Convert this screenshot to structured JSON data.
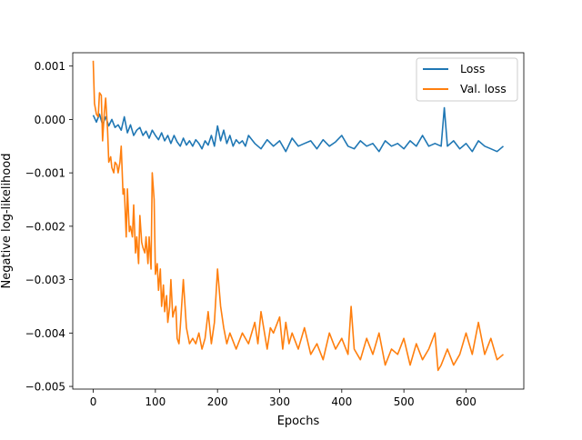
{
  "chart_data": {
    "type": "line",
    "title": "",
    "xlabel": "Epochs",
    "ylabel": "Negative log-likelihood",
    "xlim": [
      -33,
      693
    ],
    "ylim": [
      -0.00505,
      0.00125
    ],
    "xticks": [
      0,
      100,
      200,
      300,
      400,
      500,
      600
    ],
    "xtick_labels": [
      "0",
      "100",
      "200",
      "300",
      "400",
      "500",
      "600"
    ],
    "yticks": [
      0.001,
      0.0,
      -0.001,
      -0.002,
      -0.003,
      -0.004,
      -0.005
    ],
    "ytick_labels": [
      "0.001",
      "0.000",
      "−0.001",
      "−0.002",
      "−0.003",
      "−0.004",
      "−0.005"
    ],
    "grid": false,
    "legend_position": "top-right",
    "series": [
      {
        "name": "Loss",
        "color": "#1f77b4",
        "x": [
          0,
          5,
          10,
          15,
          20,
          25,
          30,
          35,
          40,
          45,
          50,
          55,
          60,
          65,
          70,
          75,
          80,
          85,
          90,
          95,
          100,
          105,
          110,
          115,
          120,
          125,
          130,
          135,
          140,
          145,
          150,
          155,
          160,
          165,
          170,
          175,
          180,
          185,
          190,
          195,
          200,
          205,
          210,
          215,
          220,
          225,
          230,
          235,
          240,
          245,
          250,
          260,
          270,
          280,
          290,
          300,
          310,
          320,
          330,
          340,
          350,
          360,
          370,
          380,
          390,
          400,
          410,
          420,
          430,
          440,
          450,
          460,
          470,
          480,
          490,
          500,
          510,
          520,
          530,
          540,
          550,
          560,
          565,
          570,
          580,
          590,
          600,
          610,
          620,
          630,
          640,
          650,
          660
        ],
        "y": [
          8e-05,
          -5e-05,
          0.0001,
          -0.0001,
          5e-05,
          -0.00012,
          0.0,
          -0.00015,
          -0.0001,
          -0.0002,
          5e-05,
          -0.00025,
          -0.0001,
          -0.0003,
          -0.0002,
          -0.00015,
          -0.0003,
          -0.00022,
          -0.00035,
          -0.0002,
          -0.0003,
          -0.00038,
          -0.00025,
          -0.0004,
          -0.0003,
          -0.00045,
          -0.0003,
          -0.00042,
          -0.0005,
          -0.00035,
          -0.00048,
          -0.0004,
          -0.0005,
          -0.00038,
          -0.00045,
          -0.00055,
          -0.0004,
          -0.00048,
          -0.0003,
          -0.0005,
          -0.00012,
          -0.0004,
          -0.0002,
          -0.00045,
          -0.0003,
          -0.0005,
          -0.00038,
          -0.00045,
          -0.0004,
          -0.0005,
          -0.0003,
          -0.00045,
          -0.00055,
          -0.00038,
          -0.0005,
          -0.0004,
          -0.0006,
          -0.00035,
          -0.0005,
          -0.00045,
          -0.0004,
          -0.00055,
          -0.00038,
          -0.0005,
          -0.00042,
          -0.0003,
          -0.0005,
          -0.00055,
          -0.0004,
          -0.0005,
          -0.00045,
          -0.0006,
          -0.0004,
          -0.0005,
          -0.00045,
          -0.00055,
          -0.0004,
          -0.0005,
          -0.0003,
          -0.0005,
          -0.00045,
          -0.0005,
          0.00022,
          -0.0005,
          -0.0004,
          -0.00055,
          -0.00045,
          -0.0006,
          -0.0004,
          -0.0005,
          -0.00055,
          -0.0006,
          -0.0005
        ]
      },
      {
        "name": "Val. loss",
        "color": "#ff7f0e",
        "x": [
          0,
          2,
          5,
          8,
          10,
          13,
          15,
          18,
          20,
          23,
          25,
          28,
          30,
          33,
          35,
          38,
          40,
          43,
          45,
          48,
          50,
          53,
          55,
          58,
          60,
          63,
          65,
          68,
          70,
          73,
          75,
          78,
          80,
          83,
          85,
          88,
          90,
          93,
          95,
          98,
          100,
          103,
          105,
          108,
          110,
          113,
          115,
          118,
          120,
          123,
          125,
          128,
          130,
          133,
          135,
          138,
          140,
          145,
          150,
          155,
          160,
          165,
          170,
          175,
          180,
          185,
          190,
          195,
          200,
          205,
          210,
          215,
          220,
          230,
          240,
          250,
          260,
          265,
          270,
          280,
          285,
          290,
          300,
          305,
          310,
          315,
          320,
          330,
          340,
          350,
          360,
          370,
          380,
          390,
          400,
          410,
          415,
          420,
          430,
          440,
          450,
          460,
          470,
          480,
          490,
          500,
          510,
          520,
          530,
          540,
          550,
          555,
          560,
          570,
          580,
          590,
          600,
          610,
          620,
          630,
          640,
          650,
          660
        ],
        "y": [
          0.0011,
          0.0003,
          0.0001,
          5e-05,
          0.0005,
          0.00045,
          -0.0004,
          0.00015,
          0.0004,
          -0.0002,
          -0.0008,
          -0.0007,
          -0.0009,
          -0.001,
          -0.0008,
          -0.00085,
          -0.001,
          -0.0008,
          -0.0005,
          -0.0014,
          -0.0013,
          -0.0022,
          -0.0013,
          -0.0021,
          -0.002,
          -0.0022,
          -0.0016,
          -0.0025,
          -0.0022,
          -0.0027,
          -0.0018,
          -0.0023,
          -0.0024,
          -0.0025,
          -0.0022,
          -0.0027,
          -0.0022,
          -0.0028,
          -0.001,
          -0.0015,
          -0.0029,
          -0.0027,
          -0.0032,
          -0.0028,
          -0.0035,
          -0.0031,
          -0.0036,
          -0.0033,
          -0.0038,
          -0.0035,
          -0.003,
          -0.0037,
          -0.0036,
          -0.0035,
          -0.0041,
          -0.0042,
          -0.0039,
          -0.003,
          -0.0039,
          -0.0042,
          -0.0041,
          -0.0042,
          -0.004,
          -0.0043,
          -0.0041,
          -0.0036,
          -0.0042,
          -0.0038,
          -0.0028,
          -0.0035,
          -0.0039,
          -0.0042,
          -0.004,
          -0.0043,
          -0.004,
          -0.0042,
          -0.0038,
          -0.0042,
          -0.0036,
          -0.0043,
          -0.0039,
          -0.004,
          -0.0037,
          -0.0043,
          -0.0038,
          -0.0042,
          -0.004,
          -0.0043,
          -0.0039,
          -0.0044,
          -0.0042,
          -0.0045,
          -0.004,
          -0.0043,
          -0.0041,
          -0.0044,
          -0.0035,
          -0.0043,
          -0.0045,
          -0.0041,
          -0.0044,
          -0.004,
          -0.0046,
          -0.0043,
          -0.0044,
          -0.0041,
          -0.0046,
          -0.0042,
          -0.0045,
          -0.0043,
          -0.004,
          -0.0047,
          -0.0046,
          -0.0043,
          -0.0046,
          -0.0044,
          -0.004,
          -0.0044,
          -0.0038,
          -0.0044,
          -0.0041,
          -0.0045,
          -0.0044
        ]
      }
    ]
  }
}
